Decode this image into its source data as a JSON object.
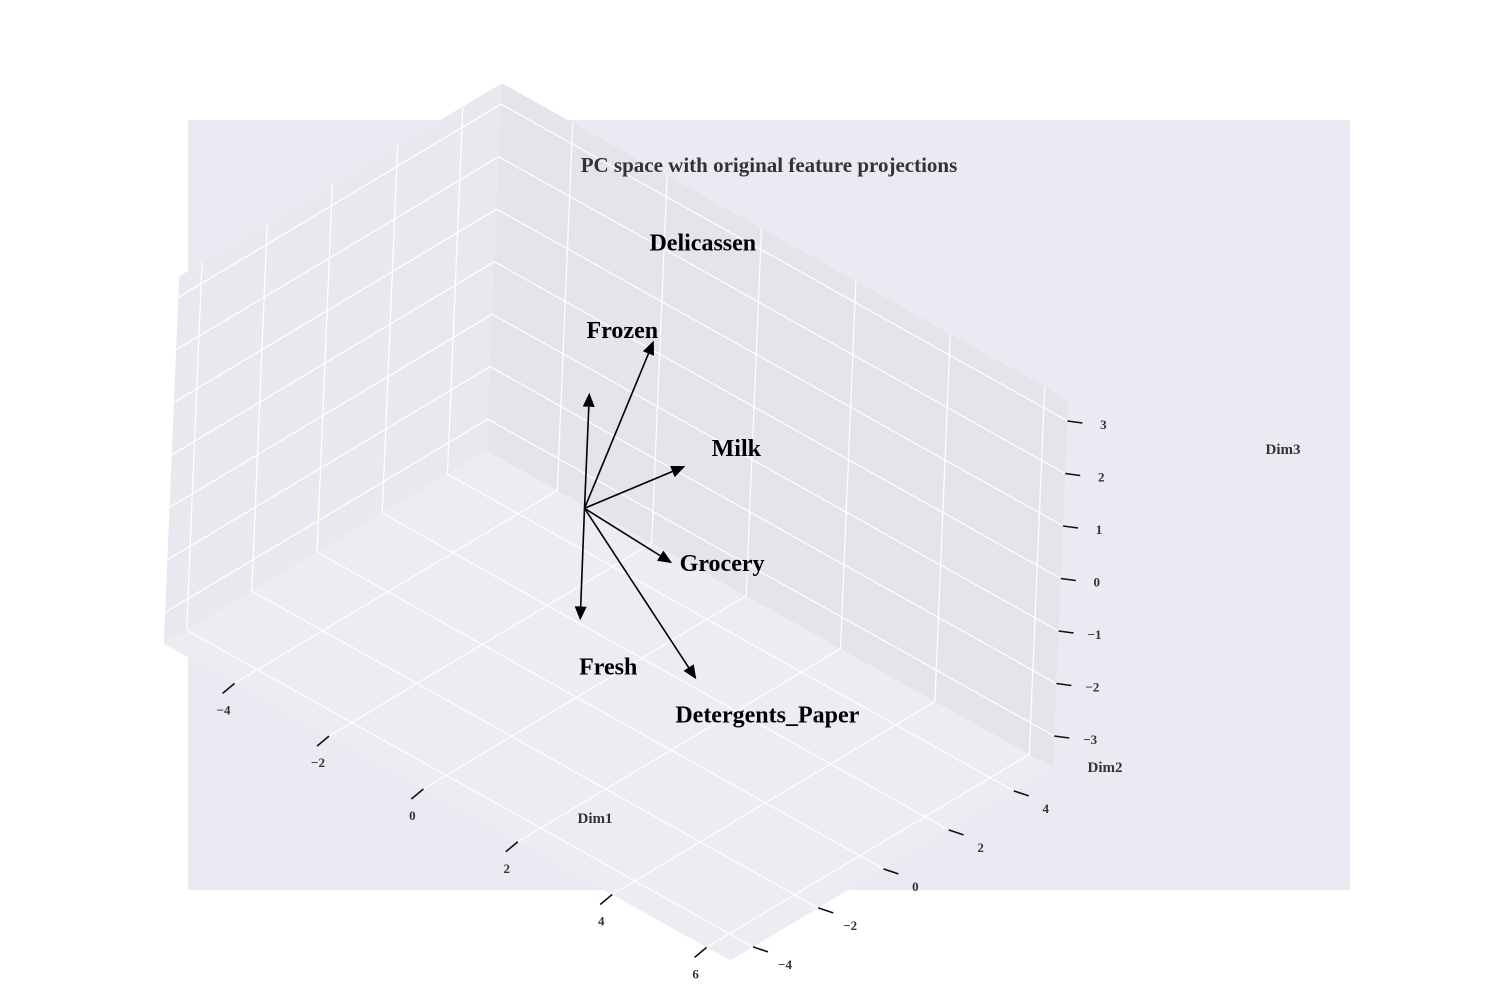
{
  "chart_data": {
    "type": "scatter",
    "projection": "3d",
    "title": "PC space with original feature projections",
    "xlabel": "Dim1",
    "ylabel": "Dim2",
    "zlabel": "Dim3",
    "xlim": [
      -5.5,
      6.5
    ],
    "ylim": [
      -4.7,
      5.2
    ],
    "zlim": [
      -3.6,
      3.4
    ],
    "x_ticks": [
      -4,
      -2,
      0,
      2,
      4,
      6
    ],
    "x_tick_labels": [
      "−4",
      "−2",
      "0",
      "2",
      "4",
      "6"
    ],
    "y_ticks": [
      -4,
      -2,
      0,
      2,
      4
    ],
    "y_tick_labels": [
      "−4",
      "−2",
      "0",
      "2",
      "4"
    ],
    "z_ticks": [
      -3,
      -2,
      -1,
      0,
      1,
      2,
      3
    ],
    "z_tick_labels": [
      "−3",
      "−2",
      "−1",
      "0",
      "1",
      "2",
      "3"
    ],
    "grid": true,
    "colors": {
      "background": "#eaeaf2",
      "pane_left": "#e8e8ef",
      "pane_back": "#e4e4eb",
      "pane_floor": "#ececf3",
      "grid": "#ffffff",
      "points": "#008000",
      "arrows": "#000000"
    },
    "points": [],
    "feature_vectors": [
      {
        "name": "Fresh",
        "vector": [
          0.6,
          -0.9,
          -1.5
        ]
      },
      {
        "name": "Milk",
        "vector": [
          0.8,
          1.9,
          0.5
        ]
      },
      {
        "name": "Grocery",
        "vector": [
          1.4,
          0.7,
          -0.6
        ]
      },
      {
        "name": "Frozen",
        "vector": [
          0.0,
          0.0,
          2.2
        ]
      },
      {
        "name": "Detergents_Paper",
        "vector": [
          2.2,
          0.4,
          -2.3
        ]
      },
      {
        "name": "Delicassen",
        "vector": [
          0.5,
          1.2,
          3.0
        ]
      }
    ]
  }
}
